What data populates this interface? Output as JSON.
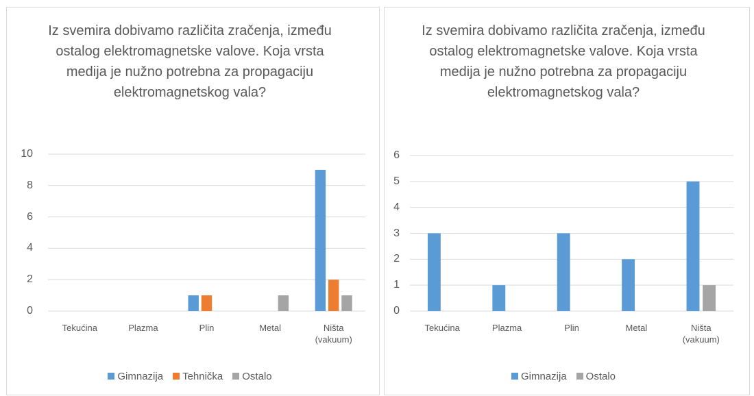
{
  "chart_data": [
    {
      "type": "bar",
      "title": "Iz svemira dobivamo različita zračenja, između ostalog elektromagnetske valove. Koja vrsta medija je nužno potrebna za propagaciju elektromagnetskog vala?",
      "categories": [
        "Tekućina",
        "Plazma",
        "Plin",
        "Metal",
        "Ništa (vakuum)"
      ],
      "series": [
        {
          "name": "Gimnazija",
          "color": "#5b9bd5",
          "values": [
            0,
            0,
            1,
            0,
            9
          ]
        },
        {
          "name": "Tehnička",
          "color": "#ed7d31",
          "values": [
            0,
            0,
            1,
            0,
            2
          ]
        },
        {
          "name": "Ostalo",
          "color": "#a5a5a5",
          "values": [
            0,
            0,
            0,
            1,
            1
          ]
        }
      ],
      "ylim": [
        0,
        10
      ],
      "yticks": [
        0,
        2,
        4,
        6,
        8,
        10
      ],
      "grid": true,
      "legend": "bottom"
    },
    {
      "type": "bar",
      "title": "Iz svemira dobivamo različita zračenja, između ostalog elektromagnetske valove. Koja vrsta medija je nužno potrebna za propagaciju elektromagnetskog vala?",
      "categories": [
        "Tekućina",
        "Plazma",
        "Plin",
        "Metal",
        "Ništa (vakuum)"
      ],
      "series": [
        {
          "name": "Gimnazija",
          "color": "#5b9bd5",
          "values": [
            3,
            1,
            3,
            2,
            5
          ]
        },
        {
          "name": "Ostalo",
          "color": "#a5a5a5",
          "values": [
            0,
            0,
            0,
            0,
            1
          ]
        }
      ],
      "ylim": [
        0,
        6
      ],
      "yticks": [
        0,
        1,
        2,
        3,
        4,
        5,
        6
      ],
      "grid": true,
      "legend": "bottom"
    }
  ]
}
